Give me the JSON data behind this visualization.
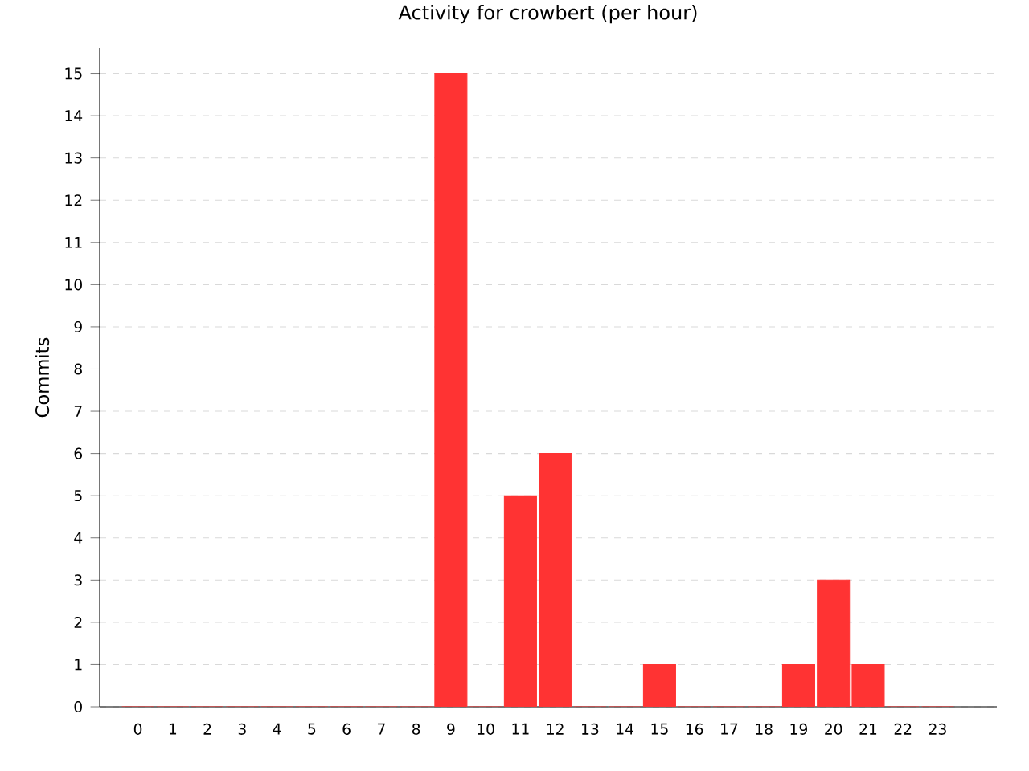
{
  "chart_data": {
    "type": "bar",
    "title": "Activity for crowbert (per hour)",
    "ylabel": "Commits",
    "categories": [
      "0",
      "1",
      "2",
      "3",
      "4",
      "5",
      "6",
      "7",
      "8",
      "9",
      "10",
      "11",
      "12",
      "13",
      "14",
      "15",
      "16",
      "17",
      "18",
      "19",
      "20",
      "21",
      "22",
      "23"
    ],
    "values": [
      0,
      0,
      0,
      0,
      0,
      0,
      0,
      0,
      0,
      15,
      0,
      5,
      6,
      0,
      0,
      1,
      0,
      0,
      0,
      1,
      3,
      1,
      0,
      0
    ],
    "color": "#ff3333",
    "ylim": [
      0,
      15.6
    ],
    "yticks": [
      0,
      1,
      2,
      3,
      4,
      5,
      6,
      7,
      8,
      9,
      10,
      11,
      12,
      13,
      14,
      15
    ],
    "grid": "y"
  }
}
